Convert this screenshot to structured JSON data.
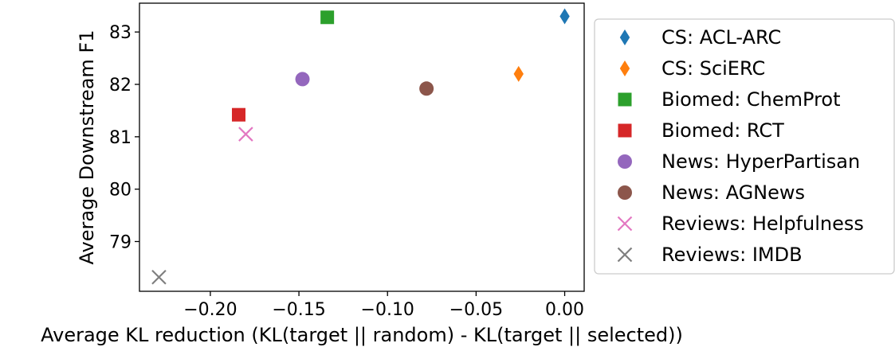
{
  "chart_data": {
    "type": "scatter",
    "title": "",
    "xlabel": "Average KL reduction (KL(target || random) - KL(target || selected))",
    "ylabel": "Average Downstream F1",
    "xlim": [
      -0.24,
      0.011
    ],
    "ylim": [
      78.05,
      83.55
    ],
    "x_ticks": [
      -0.2,
      -0.15,
      -0.1,
      -0.05,
      0.0
    ],
    "x_tick_labels": [
      "−0.20",
      "−0.15",
      "−0.10",
      "−0.05",
      "0.00"
    ],
    "y_ticks": [
      79,
      80,
      81,
      82,
      83
    ],
    "y_tick_labels": [
      "79",
      "80",
      "81",
      "82",
      "83"
    ],
    "grid": false,
    "legend_position": "right-outside",
    "series": [
      {
        "name": "CS: ACL-ARC",
        "marker": "diamond",
        "color": "#1f77b4",
        "points": [
          {
            "x": 0.0,
            "y": 83.3
          }
        ]
      },
      {
        "name": "CS: SciERC",
        "marker": "diamond",
        "color": "#ff7f0e",
        "points": [
          {
            "x": -0.026,
            "y": 82.2
          }
        ]
      },
      {
        "name": "Biomed: ChemProt",
        "marker": "square",
        "color": "#2ca02c",
        "points": [
          {
            "x": -0.134,
            "y": 83.28
          }
        ]
      },
      {
        "name": "Biomed: RCT",
        "marker": "square",
        "color": "#d62728",
        "points": [
          {
            "x": -0.184,
            "y": 81.42
          }
        ]
      },
      {
        "name": "News: HyperPartisan",
        "marker": "circle",
        "color": "#9467bd",
        "points": [
          {
            "x": -0.148,
            "y": 82.1
          }
        ]
      },
      {
        "name": "News: AGNews",
        "marker": "circle",
        "color": "#8c564b",
        "points": [
          {
            "x": -0.078,
            "y": 81.92
          }
        ]
      },
      {
        "name": "Reviews: Helpfulness",
        "marker": "x",
        "color": "#e377c2",
        "points": [
          {
            "x": -0.18,
            "y": 81.05
          }
        ]
      },
      {
        "name": "Reviews: IMDB",
        "marker": "x",
        "color": "#7f7f7f",
        "points": [
          {
            "x": -0.229,
            "y": 78.32
          }
        ]
      }
    ]
  }
}
